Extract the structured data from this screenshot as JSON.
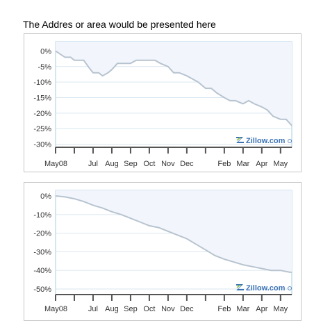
{
  "page_title": "The Addres or area would be presented here",
  "logo_text": "Zillow.com",
  "colors": {
    "line": "#b7c3cf",
    "fill": "#f2f6fc",
    "grid": "#d9e6f0",
    "axis": "#a8cce0"
  },
  "chart_data": [
    {
      "type": "area",
      "title": "",
      "ylim": [
        -31,
        3
      ],
      "y_ticks": [
        0,
        -5,
        -10,
        -15,
        -20,
        -25,
        -30
      ],
      "y_tick_labels": [
        "0%",
        "-5%",
        "-10%",
        "-15%",
        "-20%",
        "-25%",
        "-30%"
      ],
      "x_tick_labels": [
        "May08",
        "Jul",
        "Aug",
        "Sep",
        "Oct",
        "Nov",
        "Dec",
        "Feb",
        "Mar",
        "Apr",
        "May"
      ],
      "x_tick_positions": [
        0,
        2,
        3,
        4,
        5,
        6,
        7,
        9,
        10,
        11,
        12
      ],
      "grid": true,
      "series": [
        {
          "x": [
            0,
            0.5,
            0.8,
            1.0,
            1.2,
            1.5,
            1.8,
            2.0,
            2.3,
            2.5,
            2.8,
            3.0,
            3.3,
            3.6,
            4.0,
            4.3,
            4.6,
            5.0,
            5.3,
            5.6,
            6.0,
            6.3,
            6.6,
            7.0,
            7.3,
            7.6,
            8.0,
            8.3,
            8.6,
            9.0,
            9.3,
            9.6,
            10.0,
            10.3,
            10.6,
            11.0,
            11.3,
            11.6,
            12.0,
            12.3,
            12.6
          ],
          "values": [
            0,
            -2,
            -2,
            -3,
            -3,
            -3,
            -5.5,
            -7,
            -7,
            -8,
            -7,
            -6,
            -4,
            -4,
            -4,
            -3,
            -3,
            -3,
            -3,
            -4,
            -5,
            -7,
            -7,
            -8,
            -9,
            -10,
            -12,
            -12,
            -13.5,
            -15,
            -16,
            -16,
            -17,
            -16,
            -17,
            -18,
            -19,
            -21,
            -22,
            -22,
            -24
          ]
        }
      ]
    },
    {
      "type": "area",
      "title": "",
      "ylim": [
        -53,
        3
      ],
      "y_ticks": [
        0,
        -10,
        -20,
        -30,
        -40,
        -50
      ],
      "y_tick_labels": [
        "0%",
        "-10%",
        "-20%",
        "-30%",
        "-40%",
        "-50%"
      ],
      "x_tick_labels": [
        "May08",
        "Jul",
        "Aug",
        "Sep",
        "Oct",
        "Nov",
        "Dec",
        "Feb",
        "Mar",
        "Apr",
        "May"
      ],
      "x_tick_positions": [
        0,
        2,
        3,
        4,
        5,
        6,
        7,
        9,
        10,
        11,
        12
      ],
      "grid": true,
      "series": [
        {
          "x": [
            0,
            0.5,
            1.0,
            1.5,
            2.0,
            2.5,
            3.0,
            3.5,
            4.0,
            4.5,
            5.0,
            5.5,
            6.0,
            6.5,
            7.0,
            7.5,
            8.0,
            8.5,
            9.0,
            9.5,
            10.0,
            10.5,
            11.0,
            11.5,
            12.0,
            12.5,
            12.6
          ],
          "values": [
            0,
            -0.5,
            -1.5,
            -3,
            -5,
            -6.5,
            -8.5,
            -10,
            -12,
            -14,
            -16,
            -17,
            -19,
            -21,
            -23,
            -26,
            -29,
            -32,
            -34,
            -35.5,
            -37,
            -38,
            -39,
            -40,
            -40,
            -41,
            -41
          ]
        }
      ]
    }
  ]
}
